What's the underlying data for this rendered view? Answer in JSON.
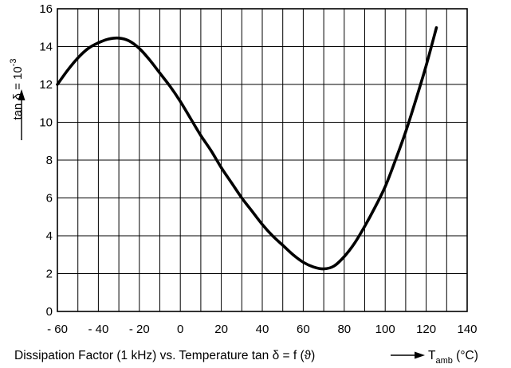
{
  "chart_data": {
    "type": "line",
    "xlim": [
      -60,
      140
    ],
    "ylim": [
      0,
      16
    ],
    "x_ticks": [
      -60,
      -40,
      -20,
      0,
      20,
      40,
      60,
      80,
      100,
      120,
      140
    ],
    "x_tick_labels": [
      "- 60",
      "- 40",
      "- 20",
      "0",
      "20",
      "40",
      "60",
      "80",
      "100",
      "120",
      "140"
    ],
    "y_ticks": [
      0,
      2,
      4,
      6,
      8,
      10,
      12,
      14,
      16
    ],
    "y_tick_labels": [
      "0",
      "2",
      "4",
      "6",
      "8",
      "10",
      "12",
      "14",
      "16"
    ],
    "grid": true,
    "grid_step_x": 10,
    "grid_step_y": 2,
    "ylabel": {
      "main": "tan δ = 10",
      "exponent": "-3"
    },
    "caption": "Dissipation Factor (1 kHz) vs. Temperature tan δ = f (ϑ)",
    "xlabel": {
      "main": "T",
      "subscript": "amb",
      "unit": " (°C)"
    },
    "series": [
      {
        "color": "#000000",
        "x": [
          -60,
          -55,
          -50,
          -45,
          -40,
          -35,
          -30,
          -25,
          -20,
          -15,
          -10,
          -5,
          0,
          5,
          10,
          15,
          20,
          25,
          30,
          35,
          40,
          45,
          50,
          55,
          60,
          65,
          70,
          75,
          80,
          85,
          90,
          95,
          100,
          105,
          110,
          115,
          120,
          125
        ],
        "y": [
          12.0,
          12.75,
          13.4,
          13.9,
          14.2,
          14.4,
          14.45,
          14.3,
          13.9,
          13.3,
          12.6,
          11.9,
          11.1,
          10.2,
          9.3,
          8.5,
          7.6,
          6.8,
          6.0,
          5.3,
          4.6,
          4.0,
          3.5,
          3.0,
          2.6,
          2.35,
          2.25,
          2.4,
          2.9,
          3.6,
          4.5,
          5.5,
          6.6,
          8.0,
          9.5,
          11.2,
          13.0,
          15.0
        ]
      }
    ]
  }
}
